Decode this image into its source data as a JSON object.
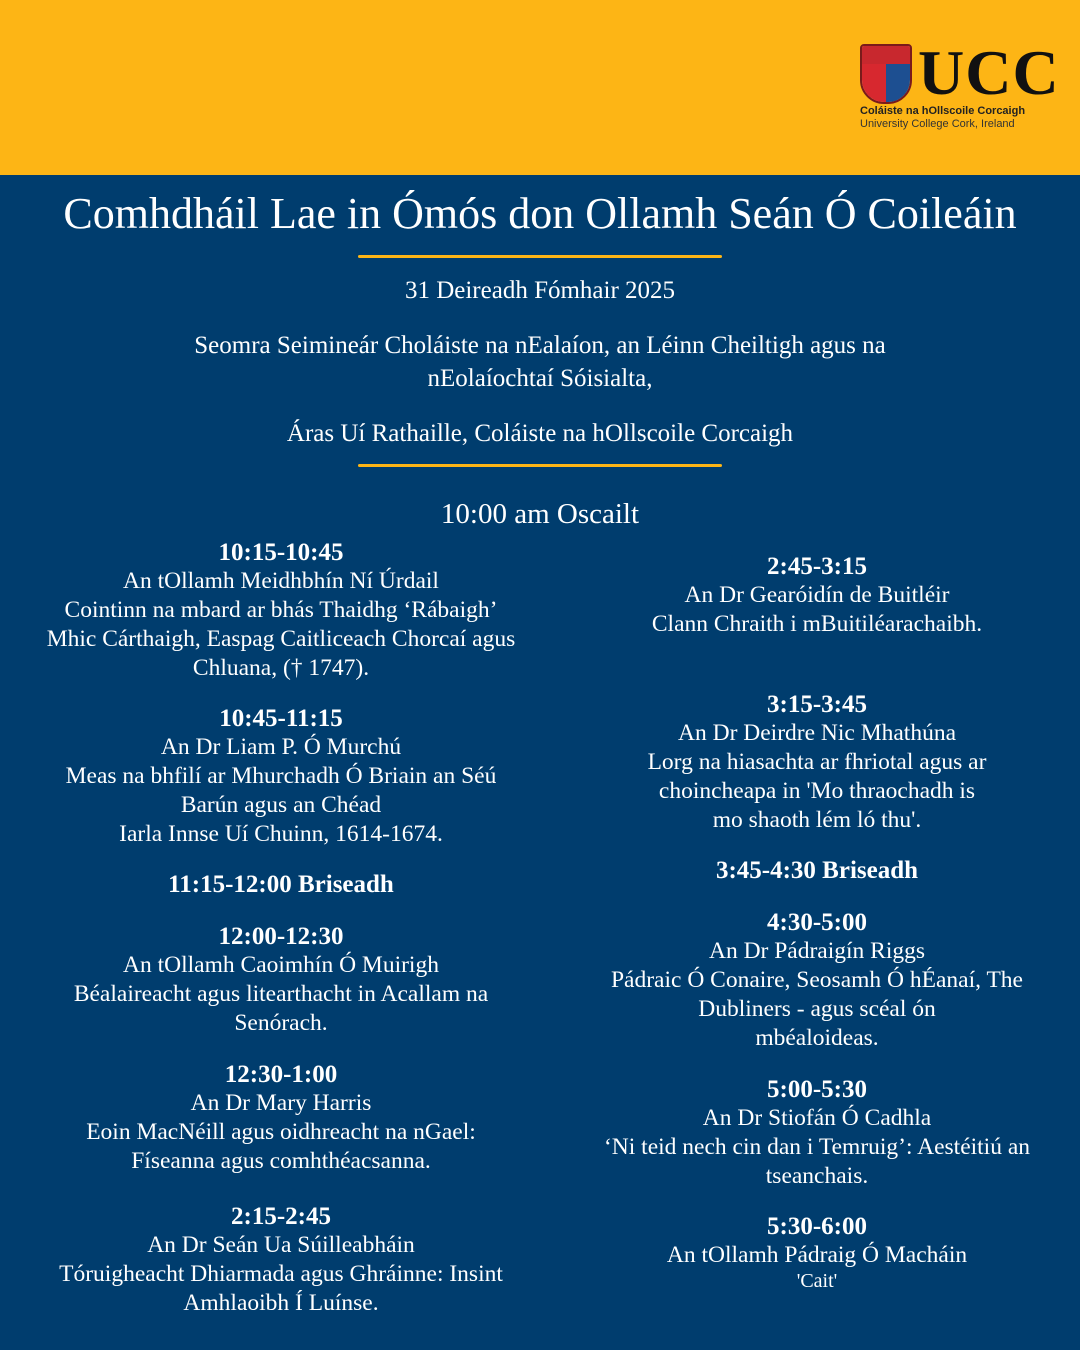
{
  "colors": {
    "header_bg": "#fdb515",
    "body_bg": "#003d6e",
    "accent_rule": "#fdb515",
    "text": "#ffffff"
  },
  "logo": {
    "wordmark": "UCC",
    "irish_name": "Coláiste na hOllscoile Corcaigh",
    "english_name": "University College Cork, Ireland"
  },
  "title": "Comhdháil Lae in Ómós don Ollamh Seán Ó Coileáin",
  "date": "31 Deireadh Fómhair 2025",
  "venue_lines": [
    "Seomra Seimineár Choláiste na nEalaíon, an Léinn Cheiltigh agus na",
    "nEolaíochtaí Sóisialta,"
  ],
  "venue_building": "Áras Uí Rathaille, Coláiste na hOllscoile Corcaigh",
  "opening": "10:00 am Oscailt",
  "left_column": [
    {
      "time": "10:15-10:45",
      "lines": [
        "An tOllamh Meidhbhín Ní Úrdail",
        "Cointinn na mbard ar bhás Thaidhg ‘Rábaigh’",
        "Mhic Cárthaigh, Easpag Caitliceach Chorcaí agus",
        "Chluana, († 1747)."
      ]
    },
    {
      "time": "10:45-11:15",
      "lines": [
        "An Dr Liam P. Ó Murchú",
        "Meas na bhfilí ar Mhurchadh Ó Briain an Séú",
        "Barún agus an Chéad",
        "Iarla Innse Uí Chuinn, 1614-1674."
      ]
    },
    {
      "break": "11:15-12:00 Briseadh"
    },
    {
      "time": "12:00-12:30",
      "lines": [
        "An tOllamh Caoimhín Ó Muirigh",
        "Béalaireacht agus litearthacht in Acallam na",
        "Senórach."
      ]
    },
    {
      "time": "12:30-1:00",
      "lines": [
        "An Dr Mary Harris",
        "Eoin MacNéill agus oidhreacht na nGael:",
        "Físeanna agus comhthéacsanna."
      ]
    },
    {
      "time": "2:15-2:45",
      "lines": [
        "An Dr Seán Ua Súilleabháin",
        "Tóruigheacht Dhiarmada agus Ghráinne: Insint",
        "Amhlaoibh Í Luínse."
      ]
    }
  ],
  "right_column": [
    {
      "time": "2:45-3:15",
      "lines": [
        "An Dr Gearóidín de Buitléir",
        "Clann Chraith i mBuitiléarachaibh."
      ]
    },
    {
      "time": "3:15-3:45",
      "lines": [
        "An Dr Deirdre Nic Mhathúna",
        "Lorg na hiasachta ar fhriotal agus ar",
        "choincheapa in 'Mo thraochadh is",
        "mo shaoth lém ló thu'."
      ]
    },
    {
      "break": "3:45-4:30 Briseadh"
    },
    {
      "time": "4:30-5:00",
      "lines": [
        "An Dr Pádraigín Riggs",
        "Pádraic Ó Conaire, Seosamh Ó hÉanaí, The",
        "Dubliners - agus scéal ón",
        "mbéaloideas."
      ]
    },
    {
      "time": "5:00-5:30",
      "lines": [
        "An Dr Stiofán Ó Cadhla",
        "‘Ni teid nech cin dan i Temruig’: Aestéitiú an",
        "tseanchais."
      ]
    },
    {
      "time": "5:30-6:00",
      "lines": [
        "An tOllamh Pádraig Ó Macháin"
      ],
      "note": "'Cait'"
    }
  ]
}
